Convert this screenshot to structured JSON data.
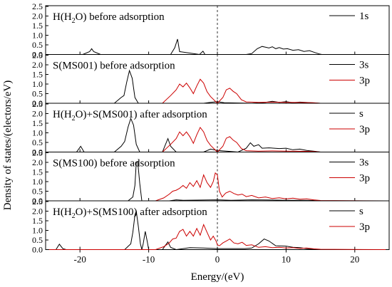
{
  "chart_data": {
    "type": "line",
    "xlabel": "Energy/(eV)",
    "ylabel": "Density of states/(electors/eV)",
    "xlim": [
      -25,
      25
    ],
    "xticks": [
      -20,
      -10,
      0,
      10,
      20
    ],
    "xtick_labels": [
      "-20",
      "-10",
      "0",
      "10",
      "20"
    ],
    "fermi_line": {
      "x": 0,
      "style": "dashed"
    },
    "panels": [
      {
        "title": "H(H₂O) before adsorption",
        "title_parts": [
          {
            "t": "H(H",
            "sub": false
          },
          {
            "t": "2",
            "sub": true
          },
          {
            "t": "O) before adsorption",
            "sub": false
          }
        ],
        "ylim": [
          0,
          2.5
        ],
        "yticks": [
          "0.0",
          "0.5",
          "1.0",
          "1.5",
          "2.0",
          "2.5"
        ],
        "series": [
          {
            "name": "1s",
            "color": "#000000",
            "x": [
              -24.5,
              -19.6,
              -18.6,
              -18.3,
              -18.0,
              -17.0,
              -6.8,
              -6.2,
              -5.8,
              -5.5,
              -2.6,
              -2.1,
              -1.8,
              4.2,
              5.0,
              5.8,
              6.5,
              7.0,
              7.5,
              8.0,
              8.5,
              9.0,
              9.6,
              10.2,
              11.0,
              11.8,
              12.6,
              13.4,
              14.2,
              14.8,
              15.2
            ],
            "y": [
              0,
              0,
              0.15,
              0.3,
              0.15,
              0,
              0,
              0.35,
              0.8,
              0.15,
              0,
              0.17,
              0,
              0,
              0.05,
              0.3,
              0.42,
              0.38,
              0.34,
              0.4,
              0.3,
              0.36,
              0.28,
              0.3,
              0.22,
              0.25,
              0.16,
              0.2,
              0.1,
              0.03,
              0
            ]
          }
        ]
      },
      {
        "title": "S(MS001) before adsorption",
        "ylim": [
          0,
          2.5
        ],
        "yticks": [
          "0.0",
          "0.5",
          "1.0",
          "1.5",
          "2.0",
          "2.5"
        ],
        "series": [
          {
            "name": "3s",
            "color": "#000000",
            "x": [
              -24.5,
              -15.0,
              -14.0,
              -13.6,
              -13.2,
              -12.8,
              -12.4,
              -12.0,
              -11.5,
              -10.0,
              -2.0,
              -1.0,
              0.0,
              1.0,
              5.0,
              7.0,
              8.0,
              9.0,
              10.0,
              11.0,
              12.0,
              13.0,
              14.0,
              15.0
            ],
            "y": [
              0,
              0,
              0.3,
              0.4,
              1.1,
              1.7,
              1.3,
              0.3,
              0,
              0,
              0,
              0.05,
              0.08,
              0.03,
              0,
              0.05,
              0.1,
              0.05,
              0.08,
              0.03,
              0.06,
              0.04,
              0.02,
              0
            ]
          },
          {
            "name": "3p",
            "color": "#cc0000",
            "x": [
              -24.5,
              -8.0,
              -6.8,
              -6.0,
              -5.5,
              -5.0,
              -4.5,
              -4.0,
              -3.5,
              -3.0,
              -2.5,
              -2.0,
              -1.5,
              -1.0,
              0.0,
              0.8,
              1.3,
              1.8,
              2.3,
              2.8,
              3.5,
              4.2,
              6.0,
              8.0,
              10.0,
              12.0,
              14.0,
              15.0,
              24.5
            ],
            "y": [
              0,
              0,
              0.4,
              0.7,
              1.0,
              0.85,
              1.05,
              0.8,
              0.5,
              0.9,
              1.25,
              1.05,
              0.6,
              0.35,
              0,
              0.3,
              0.7,
              0.78,
              0.62,
              0.5,
              0.18,
              0.07,
              0.05,
              0.06,
              0.05,
              0.04,
              0.03,
              0,
              0
            ]
          }
        ]
      },
      {
        "title": "H(H₂O)+S(MS001) after adsorption",
        "title_parts": [
          {
            "t": "H(H",
            "sub": false
          },
          {
            "t": "2",
            "sub": true
          },
          {
            "t": "O)+S(MS001) after adsorption",
            "sub": false
          }
        ],
        "ylim": [
          0,
          2.5
        ],
        "yticks": [
          "0.0",
          "0.5",
          "1.0",
          "1.5",
          "2.0",
          "2.5"
        ],
        "series": [
          {
            "name": "s",
            "color": "#000000",
            "x": [
              -24.5,
              -20.5,
              -19.9,
              -19.4,
              -15.0,
              -14.0,
              -13.5,
              -13.0,
              -12.6,
              -12.2,
              -11.8,
              -11.3,
              -8.0,
              -7.6,
              -7.2,
              -6.8,
              -6.0,
              -2.0,
              -1.0,
              0.0,
              3.0,
              4.2,
              4.8,
              5.3,
              6.0,
              6.5,
              7.5,
              9.0,
              10.0,
              11.0,
              12.0,
              13.0,
              14.0,
              15.0
            ],
            "y": [
              0,
              0,
              0.3,
              0,
              0,
              0.3,
              0.55,
              1.3,
              1.75,
              1.4,
              0.4,
              0,
              0,
              0.35,
              0.7,
              0.3,
              0,
              0,
              0.15,
              0.08,
              0,
              0.2,
              0.48,
              0.3,
              0.38,
              0.2,
              0.22,
              0.18,
              0.2,
              0.12,
              0.15,
              0.08,
              0.05,
              0
            ]
          },
          {
            "name": "3p",
            "color": "#cc0000",
            "x": [
              -24.5,
              -8.0,
              -6.8,
              -6.0,
              -5.5,
              -5.0,
              -4.5,
              -4.0,
              -3.5,
              -3.0,
              -2.5,
              -2.0,
              -1.5,
              -1.0,
              0.0,
              0.8,
              1.3,
              1.8,
              2.3,
              2.8,
              3.5,
              4.2,
              6.0,
              8.0,
              10.0,
              12.0,
              14.0,
              15.0,
              24.5
            ],
            "y": [
              0,
              0,
              0.4,
              0.7,
              1.05,
              0.85,
              1.05,
              0.8,
              0.45,
              0.9,
              1.28,
              1.05,
              0.6,
              0.35,
              0,
              0.3,
              0.72,
              0.8,
              0.62,
              0.5,
              0.18,
              0.07,
              0.05,
              0.06,
              0.05,
              0.04,
              0.03,
              0,
              0
            ]
          }
        ]
      },
      {
        "title": "S(MS100) before adsorption",
        "ylim": [
          0,
          2.5
        ],
        "yticks": [
          "0.0",
          "0.5",
          "1.0",
          "1.5",
          "2.0",
          "2.5"
        ],
        "series": [
          {
            "name": "3s",
            "color": "#000000",
            "x": [
              -24.5,
              -13.0,
              -12.3,
              -12.0,
              -11.8,
              -11.6,
              -11.3,
              -11.0,
              -10.0,
              -7.0,
              -6.0,
              -5.0,
              0.0,
              2.0,
              5.0,
              8.0,
              10.0,
              12.0,
              14.0,
              15.0
            ],
            "y": [
              0,
              0,
              0.2,
              0.8,
              2.0,
              2.05,
              0.9,
              0,
              0,
              0,
              0.05,
              0.03,
              0.05,
              0.03,
              0.05,
              0.04,
              0.03,
              0.03,
              0.02,
              0
            ]
          },
          {
            "name": "3p",
            "color": "#cc0000",
            "x": [
              -24.5,
              -9.0,
              -7.8,
              -7.0,
              -6.5,
              -6.0,
              -5.5,
              -5.0,
              -4.5,
              -4.0,
              -3.5,
              -3.0,
              -2.5,
              -2.0,
              -1.5,
              -1.0,
              -0.6,
              -0.3,
              0.0,
              0.3,
              0.7,
              1.2,
              1.8,
              2.4,
              3.0,
              3.6,
              4.2,
              5.0,
              6.0,
              7.0,
              8.0,
              9.0,
              10.0,
              11.0,
              12.0,
              13.0,
              14.0,
              15.0,
              24.5
            ],
            "y": [
              0,
              0,
              0.15,
              0.35,
              0.5,
              0.55,
              0.65,
              0.8,
              0.65,
              0.95,
              0.75,
              1.05,
              0.7,
              1.35,
              0.95,
              0.7,
              1.0,
              1.45,
              1.35,
              0.5,
              0.2,
              0.4,
              0.5,
              0.38,
              0.3,
              0.35,
              0.22,
              0.28,
              0.15,
              0.2,
              0.12,
              0.16,
              0.1,
              0.14,
              0.08,
              0.1,
              0.05,
              0.02,
              0
            ]
          }
        ]
      },
      {
        "title": "H(H₂O)+S(MS100) after adsorption",
        "title_parts": [
          {
            "t": "H(H",
            "sub": false
          },
          {
            "t": "2",
            "sub": true
          },
          {
            "t": "O)+S(MS100) after adsorption",
            "sub": false
          }
        ],
        "ylim": [
          0,
          2.5
        ],
        "yticks": [
          "0.0",
          "0.5",
          "1.0",
          "1.5",
          "2.0",
          "2.5"
        ],
        "series": [
          {
            "name": "s",
            "color": "#000000",
            "x": [
              -24.5,
              -23.5,
              -23.0,
              -22.5,
              -22.0,
              -13.5,
              -12.6,
              -12.3,
              -12.0,
              -11.8,
              -11.5,
              -11.2,
              -11.0,
              -10.8,
              -10.5,
              -10.2,
              -10.0,
              -8.0,
              -7.6,
              -7.2,
              -6.8,
              -6.0,
              -4.0,
              -2.0,
              0.0,
              2.0,
              4.0,
              5.0,
              6.0,
              6.8,
              7.5,
              8.5,
              10.0,
              11.0,
              12.0,
              13.0,
              14.0,
              15.0
            ],
            "y": [
              0,
              0,
              0.28,
              0.05,
              0,
              0,
              0.3,
              0.9,
              1.8,
              2.0,
              1.2,
              0.3,
              0,
              0.3,
              0.95,
              0.4,
              0,
              0,
              0.2,
              0.4,
              0.12,
              0,
              0.1,
              0.08,
              0.05,
              0.05,
              0.05,
              0.08,
              0.3,
              0.55,
              0.45,
              0.2,
              0.18,
              0.12,
              0.1,
              0.05,
              0.03,
              0
            ]
          },
          {
            "name": "3p",
            "color": "#cc0000",
            "x": [
              -24.5,
              -9.0,
              -7.8,
              -7.0,
              -6.5,
              -6.0,
              -5.5,
              -5.0,
              -4.5,
              -4.0,
              -3.5,
              -3.0,
              -2.5,
              -2.0,
              -1.5,
              -1.0,
              -0.6,
              -0.2,
              0.0,
              0.3,
              0.8,
              1.3,
              1.8,
              2.4,
              3.0,
              3.6,
              4.2,
              5.0,
              6.0,
              7.0,
              8.0,
              9.0,
              10.0,
              11.0,
              12.0,
              13.0,
              14.0,
              15.0,
              24.5
            ],
            "y": [
              0,
              0,
              0.15,
              0.35,
              0.55,
              0.6,
              0.95,
              1.05,
              0.7,
              0.95,
              0.7,
              1.1,
              0.75,
              1.3,
              0.9,
              0.5,
              0.7,
              0.45,
              0.25,
              0.2,
              0.35,
              0.45,
              0.55,
              0.35,
              0.3,
              0.38,
              0.22,
              0.25,
              0.12,
              0.15,
              0.1,
              0.12,
              0.08,
              0.1,
              0.06,
              0.08,
              0.04,
              0.02,
              0
            ]
          }
        ]
      }
    ]
  }
}
